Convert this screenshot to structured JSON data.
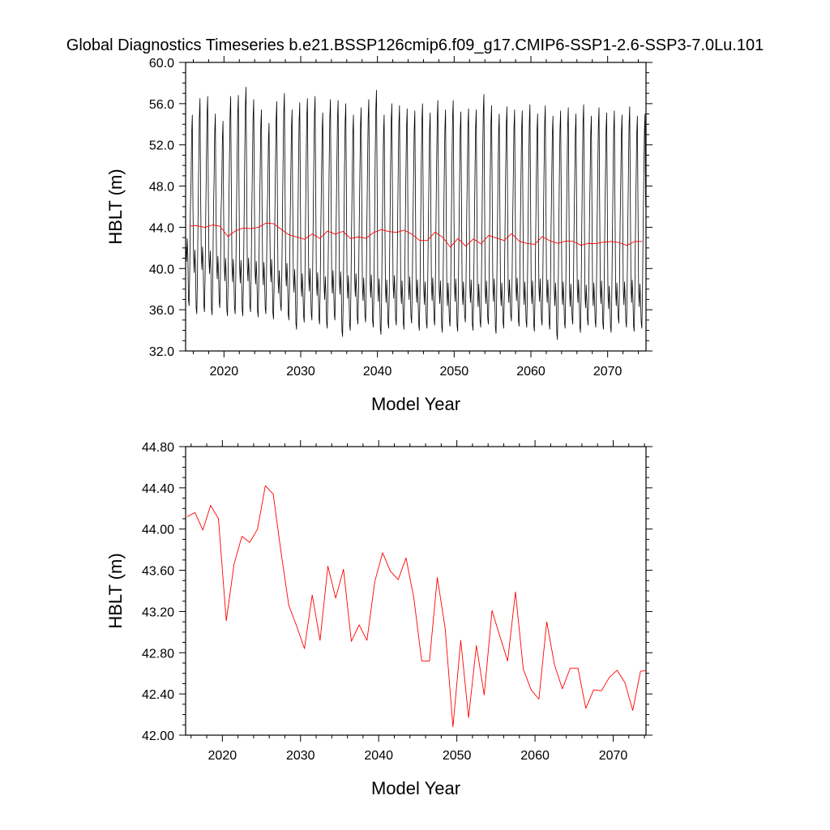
{
  "figure": {
    "title": "Global Diagnostics Timeseries b.e21.BSSP126cmip6.f09_g17.CMIP6-SSP1-2.6-SSP3-7.0Lu.101"
  },
  "colors": {
    "monthly": "#000000",
    "annual": "#ff0000",
    "axes": "#000000"
  },
  "chart_data": [
    {
      "type": "line",
      "xlabel": "Model Year",
      "ylabel": "HBLT (m)",
      "xlim": [
        2015,
        2075
      ],
      "ylim": [
        32.0,
        60.0
      ],
      "yticks": [
        "32.0",
        "36.0",
        "40.0",
        "44.0",
        "48.0",
        "52.0",
        "56.0",
        "60.0"
      ],
      "xticks": [
        "2020",
        "2030",
        "2040",
        "2050",
        "2060",
        "2070"
      ],
      "grid": false,
      "series": [
        {
          "color": "#000000",
          "x_start": 2015.04,
          "x_step": 0.0833333,
          "annual_max": [
            54.9,
            56.5,
            56.7,
            55.0,
            54.3,
            56.7,
            56.8,
            57.6,
            56.4,
            55.4,
            54.1,
            56.2,
            57.0,
            55.4,
            56.1,
            56.5,
            56.7,
            55.1,
            56.4,
            56.3,
            56.0,
            54.9,
            55.6,
            56.4,
            57.3,
            54.9,
            56.0,
            55.8,
            55.5,
            55.3,
            56.0,
            55.1,
            56.3,
            55.4,
            56.3,
            55.2,
            55.5,
            55.4,
            56.9,
            55.8,
            55.0,
            55.7,
            55.4,
            55.3,
            55.9,
            55.0,
            55.8,
            54.8,
            55.3,
            55.6,
            55.0,
            55.9,
            54.8,
            55.6,
            55.1,
            55.3,
            54.9,
            55.7,
            54.8,
            55.0
          ],
          "annual_min": [
            36.4,
            35.6,
            35.8,
            35.5,
            36.2,
            35.4,
            35.6,
            35.4,
            35.8,
            35.3,
            35.6,
            35.1,
            35.9,
            35.0,
            34.1,
            34.8,
            35.0,
            34.6,
            34.2,
            35.0,
            33.4,
            34.0,
            34.6,
            34.8,
            34.3,
            33.6,
            34.2,
            34.5,
            34.1,
            34.7,
            34.0,
            34.2,
            34.5,
            33.8,
            34.4,
            33.9,
            34.8,
            34.0,
            34.3,
            34.6,
            33.7,
            34.2,
            34.9,
            34.4,
            34.3,
            33.9,
            34.5,
            34.1,
            33.1,
            34.2,
            34.6,
            33.8,
            34.5,
            34.3,
            34.1,
            33.8,
            34.7,
            34.3,
            33.9,
            34.2
          ],
          "secondary_peak": [
            42.9,
            41.8,
            42.1,
            41.7,
            41.2,
            41.0,
            40.9,
            40.8,
            41.0,
            40.7,
            40.6,
            40.9,
            39.8,
            40.5,
            39.9,
            39.5,
            40.0,
            39.6,
            39.2,
            39.8,
            39.7,
            39.3,
            39.5,
            39.1,
            39.4,
            39.0,
            38.9,
            39.3,
            38.8,
            39.2,
            38.9,
            38.7,
            39.1,
            38.8,
            38.6,
            39.0,
            38.7,
            38.9,
            38.5,
            38.8,
            39.0,
            38.6,
            38.9,
            39.1,
            38.7,
            38.8,
            39.0,
            38.9,
            38.6,
            38.7,
            38.5,
            38.9,
            38.4,
            38.6,
            38.8,
            38.3,
            38.6,
            38.7,
            38.9,
            38.5
          ]
        },
        {
          "color": "#ff0000",
          "x": [
            2015.5,
            2016.5,
            2017.5,
            2018.5,
            2019.5,
            2020.5,
            2021.5,
            2022.5,
            2023.5,
            2024.5,
            2025.5,
            2026.5,
            2027.5,
            2028.5,
            2029.5,
            2030.5,
            2031.5,
            2032.5,
            2033.5,
            2034.5,
            2035.5,
            2036.5,
            2037.5,
            2038.5,
            2039.5,
            2040.5,
            2041.5,
            2042.5,
            2043.5,
            2044.5,
            2045.5,
            2046.5,
            2047.5,
            2048.5,
            2049.5,
            2050.5,
            2051.5,
            2052.5,
            2053.5,
            2054.5,
            2055.5,
            2056.5,
            2057.5,
            2058.5,
            2059.5,
            2060.5,
            2061.5,
            2062.5,
            2063.5,
            2064.5,
            2065.5,
            2066.5,
            2067.5,
            2068.5,
            2069.5,
            2070.5,
            2071.5,
            2072.5,
            2073.5,
            2074.5
          ],
          "values": [
            44.12,
            44.16,
            43.99,
            44.23,
            44.1,
            43.11,
            43.66,
            43.93,
            43.87,
            44.0,
            44.42,
            44.34,
            43.78,
            43.26,
            43.06,
            42.84,
            43.36,
            42.92,
            43.64,
            43.33,
            43.61,
            42.91,
            43.07,
            42.92,
            43.49,
            43.77,
            43.59,
            43.51,
            43.72,
            43.33,
            42.72,
            42.72,
            43.53,
            43.04,
            42.08,
            42.92,
            42.17,
            42.87,
            42.39,
            43.21,
            42.96,
            42.72,
            43.39,
            42.64,
            42.44,
            42.35,
            43.1,
            42.68,
            42.45,
            42.65,
            42.65,
            42.26,
            42.44,
            42.43,
            42.56,
            42.63,
            42.51,
            42.24,
            42.62,
            42.63
          ]
        }
      ]
    },
    {
      "type": "line",
      "xlabel": "Model Year",
      "ylabel": "HBLT (m)",
      "xlim": [
        2015.3,
        2074.2
      ],
      "ylim": [
        42.0,
        44.8
      ],
      "yticks": [
        "42.00",
        "42.40",
        "42.80",
        "43.20",
        "43.60",
        "44.00",
        "44.40",
        "44.80"
      ],
      "xticks": [
        "2020",
        "2030",
        "2040",
        "2050",
        "2060",
        "2070"
      ],
      "grid": false,
      "series": [
        {
          "color": "#ff0000",
          "x": [
            2015.5,
            2016.5,
            2017.5,
            2018.5,
            2019.5,
            2020.5,
            2021.5,
            2022.5,
            2023.5,
            2024.5,
            2025.5,
            2026.5,
            2027.5,
            2028.5,
            2029.5,
            2030.5,
            2031.5,
            2032.5,
            2033.5,
            2034.5,
            2035.5,
            2036.5,
            2037.5,
            2038.5,
            2039.5,
            2040.5,
            2041.5,
            2042.5,
            2043.5,
            2044.5,
            2045.5,
            2046.5,
            2047.5,
            2048.5,
            2049.5,
            2050.5,
            2051.5,
            2052.5,
            2053.5,
            2054.5,
            2055.5,
            2056.5,
            2057.5,
            2058.5,
            2059.5,
            2060.5,
            2061.5,
            2062.5,
            2063.5,
            2064.5,
            2065.5,
            2066.5,
            2067.5,
            2068.5,
            2069.5,
            2070.5,
            2071.5,
            2072.5,
            2073.5,
            2074.5
          ],
          "values": [
            44.12,
            44.16,
            43.99,
            44.23,
            44.1,
            43.11,
            43.66,
            43.93,
            43.87,
            44.0,
            44.42,
            44.34,
            43.78,
            43.26,
            43.06,
            42.84,
            43.36,
            42.92,
            43.64,
            43.33,
            43.61,
            42.91,
            43.07,
            42.92,
            43.49,
            43.77,
            43.59,
            43.51,
            43.72,
            43.33,
            42.72,
            42.72,
            43.53,
            43.04,
            42.08,
            42.92,
            42.17,
            42.87,
            42.39,
            43.21,
            42.96,
            42.72,
            43.39,
            42.64,
            42.44,
            42.35,
            43.1,
            42.68,
            42.45,
            42.65,
            42.65,
            42.26,
            42.44,
            42.43,
            42.56,
            42.63,
            42.51,
            42.24,
            42.62,
            42.63
          ]
        }
      ]
    }
  ]
}
